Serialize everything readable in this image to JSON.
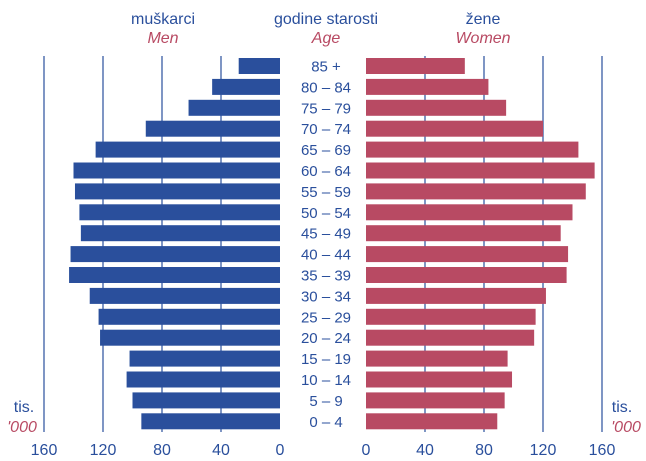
{
  "chart_data": {
    "type": "bar",
    "orientation": "horizontal",
    "left_title": "muškarci",
    "left_subtitle": "Men",
    "center_title": "godine starosti",
    "center_subtitle": "Age",
    "right_title": "žene",
    "right_subtitle": "Women",
    "unit_label": "tis.",
    "unit_label_en": "'000",
    "categories": [
      "85 +",
      "80 – 84",
      "75 – 79",
      "70 – 74",
      "65 – 69",
      "60 – 64",
      "55 – 59",
      "50 – 54",
      "45 – 49",
      "40 – 44",
      "35 – 39",
      "30 – 34",
      "25 – 29",
      "20 – 24",
      "15 – 19",
      "10 – 14",
      "5 – 9",
      "0 – 4"
    ],
    "series": [
      {
        "name": "Men",
        "color": "#2a4f9c",
        "values": [
          28,
          46,
          62,
          91,
          125,
          140,
          139,
          136,
          135,
          142,
          143,
          129,
          123,
          122,
          102,
          104,
          100,
          94
        ]
      },
      {
        "name": "Women",
        "color": "#b84a63",
        "values": [
          67,
          83,
          95,
          120,
          144,
          155,
          149,
          140,
          132,
          137,
          136,
          122,
          115,
          114,
          96,
          99,
          94,
          89
        ]
      }
    ],
    "xlim": [
      0,
      160
    ],
    "ticks": [
      "0",
      "40",
      "80",
      "120",
      "160"
    ],
    "grid": true
  }
}
